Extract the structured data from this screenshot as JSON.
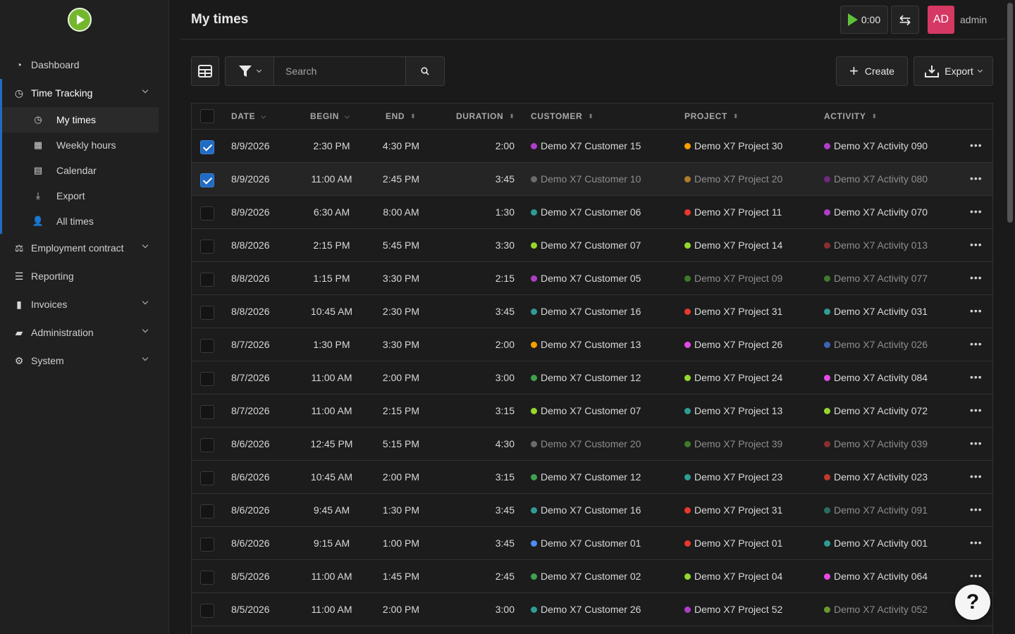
{
  "colors": {
    "accent": "#206bc4",
    "timer_green": "#5fc13a",
    "avatar": "#d63864"
  },
  "sidebar": {
    "items": [
      {
        "label": "Dashboard",
        "icon": "dashboard-icon"
      },
      {
        "label": "Time Tracking",
        "icon": "clock-icon",
        "expanded": true,
        "children": [
          {
            "label": "My times",
            "icon": "clock-icon",
            "active": true
          },
          {
            "label": "Weekly hours",
            "icon": "grid-icon"
          },
          {
            "label": "Calendar",
            "icon": "calendar-icon"
          },
          {
            "label": "Export",
            "icon": "download-icon"
          },
          {
            "label": "All times",
            "icon": "users-clock-icon"
          }
        ]
      },
      {
        "label": "Employment contract",
        "icon": "scale-icon"
      },
      {
        "label": "Reporting",
        "icon": "chart-icon"
      },
      {
        "label": "Invoices",
        "icon": "invoice-icon"
      },
      {
        "label": "Administration",
        "icon": "admin-icon"
      },
      {
        "label": "System",
        "icon": "gear-icon"
      }
    ]
  },
  "header": {
    "title": "My times",
    "timer": "0:00",
    "avatar_initials": "AD",
    "username": "admin"
  },
  "toolbar": {
    "search_placeholder": "Search",
    "create_label": "Create",
    "export_label": "Export"
  },
  "table": {
    "columns": [
      "DATE",
      "BEGIN",
      "END",
      "DURATION",
      "CUSTOMER",
      "PROJECT",
      "ACTIVITY"
    ],
    "rows": [
      {
        "checked": true,
        "date": "8/9/2026",
        "begin": "2:30 PM",
        "end": "4:30 PM",
        "duration": "2:00",
        "customer": "Demo X7 Customer 15",
        "cust_color": "#ae3ec9",
        "cust_dim": false,
        "project": "Demo X7 Project 30",
        "proj_color": "#f59f00",
        "proj_dim": false,
        "activity": "Demo X7 Activity 090",
        "act_color": "#ae3ec9",
        "act_dim": false
      },
      {
        "checked": true,
        "date": "8/9/2026",
        "begin": "11:00 AM",
        "end": "2:45 PM",
        "duration": "3:45",
        "customer": "Demo X7 Customer 10",
        "cust_color": "#6b6b6b",
        "cust_dim": true,
        "project": "Demo X7 Project 20",
        "proj_color": "#b07a2e",
        "proj_dim": true,
        "activity": "Demo X7 Activity 080",
        "act_color": "#6e2a7e",
        "act_dim": true
      },
      {
        "checked": false,
        "date": "8/9/2026",
        "begin": "6:30 AM",
        "end": "8:00 AM",
        "duration": "1:30",
        "customer": "Demo X7 Customer 06",
        "cust_color": "#2f9c95",
        "cust_dim": false,
        "project": "Demo X7 Project 11",
        "proj_color": "#e8382e",
        "proj_dim": false,
        "activity": "Demo X7 Activity 070",
        "act_color": "#ae3ec9",
        "act_dim": false
      },
      {
        "checked": false,
        "date": "8/8/2026",
        "begin": "2:15 PM",
        "end": "5:45 PM",
        "duration": "3:30",
        "customer": "Demo X7 Customer 07",
        "cust_color": "#94d82d",
        "cust_dim": false,
        "project": "Demo X7 Project 14",
        "proj_color": "#94d82d",
        "proj_dim": false,
        "activity": "Demo X7 Activity 013",
        "act_color": "#8a2f2f",
        "act_dim": true
      },
      {
        "checked": false,
        "date": "8/8/2026",
        "begin": "1:15 PM",
        "end": "3:30 PM",
        "duration": "2:15",
        "customer": "Demo X7 Customer 05",
        "cust_color": "#ae3ec9",
        "cust_dim": false,
        "project": "Demo X7 Project 09",
        "proj_color": "#3f7a2c",
        "proj_dim": true,
        "activity": "Demo X7 Activity 077",
        "act_color": "#3f7a2c",
        "act_dim": true
      },
      {
        "checked": false,
        "date": "8/8/2026",
        "begin": "10:45 AM",
        "end": "2:30 PM",
        "duration": "3:45",
        "customer": "Demo X7 Customer 16",
        "cust_color": "#2f9c95",
        "cust_dim": false,
        "project": "Demo X7 Project 31",
        "proj_color": "#e8382e",
        "proj_dim": false,
        "activity": "Demo X7 Activity 031",
        "act_color": "#2f9c95",
        "act_dim": false
      },
      {
        "checked": false,
        "date": "8/7/2026",
        "begin": "1:30 PM",
        "end": "3:30 PM",
        "duration": "2:00",
        "customer": "Demo X7 Customer 13",
        "cust_color": "#f59f00",
        "cust_dim": false,
        "project": "Demo X7 Project 26",
        "proj_color": "#e64ae6",
        "proj_dim": false,
        "activity": "Demo X7 Activity 026",
        "act_color": "#3b63b8",
        "act_dim": true
      },
      {
        "checked": false,
        "date": "8/7/2026",
        "begin": "11:00 AM",
        "end": "2:00 PM",
        "duration": "3:00",
        "customer": "Demo X7 Customer 12",
        "cust_color": "#40a14f",
        "cust_dim": false,
        "project": "Demo X7 Project 24",
        "proj_color": "#94d82d",
        "proj_dim": false,
        "activity": "Demo X7 Activity 084",
        "act_color": "#e64ae6",
        "act_dim": false
      },
      {
        "checked": false,
        "date": "8/7/2026",
        "begin": "11:00 AM",
        "end": "2:15 PM",
        "duration": "3:15",
        "customer": "Demo X7 Customer 07",
        "cust_color": "#94d82d",
        "cust_dim": false,
        "project": "Demo X7 Project 13",
        "proj_color": "#2f9c95",
        "proj_dim": false,
        "activity": "Demo X7 Activity 072",
        "act_color": "#94d82d",
        "act_dim": false
      },
      {
        "checked": false,
        "date": "8/6/2026",
        "begin": "12:45 PM",
        "end": "5:15 PM",
        "duration": "4:30",
        "customer": "Demo X7 Customer 20",
        "cust_color": "#6b6b6b",
        "cust_dim": true,
        "project": "Demo X7 Project 39",
        "proj_color": "#3f7a2c",
        "proj_dim": true,
        "activity": "Demo X7 Activity 039",
        "act_color": "#8a2f2f",
        "act_dim": true
      },
      {
        "checked": false,
        "date": "8/6/2026",
        "begin": "10:45 AM",
        "end": "2:00 PM",
        "duration": "3:15",
        "customer": "Demo X7 Customer 12",
        "cust_color": "#40a14f",
        "cust_dim": false,
        "project": "Demo X7 Project 23",
        "proj_color": "#2f9c95",
        "proj_dim": false,
        "activity": "Demo X7 Activity 023",
        "act_color": "#c0392b",
        "act_dim": false
      },
      {
        "checked": false,
        "date": "8/6/2026",
        "begin": "9:45 AM",
        "end": "1:30 PM",
        "duration": "3:45",
        "customer": "Demo X7 Customer 16",
        "cust_color": "#2f9c95",
        "cust_dim": false,
        "project": "Demo X7 Project 31",
        "proj_color": "#e8382e",
        "proj_dim": false,
        "activity": "Demo X7 Activity 091",
        "act_color": "#2a6b66",
        "act_dim": true
      },
      {
        "checked": false,
        "date": "8/6/2026",
        "begin": "9:15 AM",
        "end": "1:00 PM",
        "duration": "3:45",
        "customer": "Demo X7 Customer 01",
        "cust_color": "#4d8cf5",
        "cust_dim": false,
        "project": "Demo X7 Project 01",
        "proj_color": "#e8382e",
        "proj_dim": false,
        "activity": "Demo X7 Activity 001",
        "act_color": "#2f9c95",
        "act_dim": false
      },
      {
        "checked": false,
        "date": "8/5/2026",
        "begin": "11:00 AM",
        "end": "1:45 PM",
        "duration": "2:45",
        "customer": "Demo X7 Customer 02",
        "cust_color": "#40a14f",
        "cust_dim": false,
        "project": "Demo X7 Project 04",
        "proj_color": "#94d82d",
        "proj_dim": false,
        "activity": "Demo X7 Activity 064",
        "act_color": "#e64ae6",
        "act_dim": false
      },
      {
        "checked": false,
        "date": "8/5/2026",
        "begin": "11:00 AM",
        "end": "2:00 PM",
        "duration": "3:00",
        "customer": "Demo X7 Customer 26",
        "cust_color": "#2f9c95",
        "cust_dim": false,
        "project": "Demo X7 Project 52",
        "proj_color": "#ae3ec9",
        "proj_dim": false,
        "activity": "Demo X7 Activity 052",
        "act_color": "#6a9a2c",
        "act_dim": true
      }
    ]
  },
  "help_label": "?"
}
